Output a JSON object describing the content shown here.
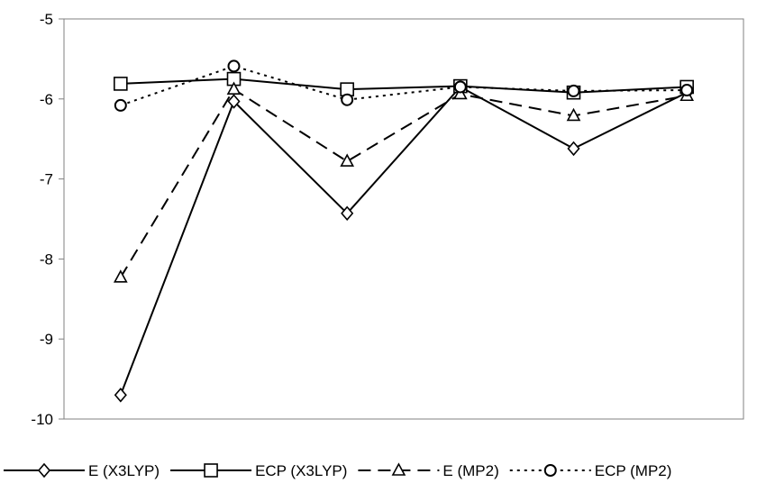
{
  "chart_data": {
    "type": "line",
    "title": "",
    "xlabel": "",
    "ylabel": "",
    "ylim": [
      -10,
      -5
    ],
    "yticks": [
      -5,
      -6,
      -7,
      -8,
      -9,
      -10
    ],
    "ytick_labels": [
      "-5",
      "-6",
      "-7",
      "-8",
      "-9",
      "-10"
    ],
    "x": [
      1,
      2,
      3,
      4,
      5,
      6
    ],
    "grid": false,
    "legend_position": "bottom",
    "series": [
      {
        "name": "E (X3LYP)",
        "marker": "diamond",
        "dash": "solid",
        "values": [
          -9.7,
          -6.03,
          -7.43,
          -5.85,
          -6.62,
          -5.92
        ]
      },
      {
        "name": "ECP (X3LYP)",
        "marker": "square",
        "dash": "solid",
        "values": [
          -5.81,
          -5.75,
          -5.88,
          -5.84,
          -5.92,
          -5.85
        ]
      },
      {
        "name": "E (MP2)",
        "marker": "triangle",
        "dash": "dashed",
        "values": [
          -8.23,
          -5.88,
          -6.78,
          -5.94,
          -6.21,
          -5.96
        ]
      },
      {
        "name": "ECP (MP2)",
        "marker": "circle",
        "dash": "dotted",
        "values": [
          -6.08,
          -5.59,
          -6.01,
          -5.85,
          -5.9,
          -5.89
        ]
      }
    ],
    "colors": {
      "line": "#000000",
      "marker_fill": "#ffffff",
      "axis": "#808080"
    }
  }
}
